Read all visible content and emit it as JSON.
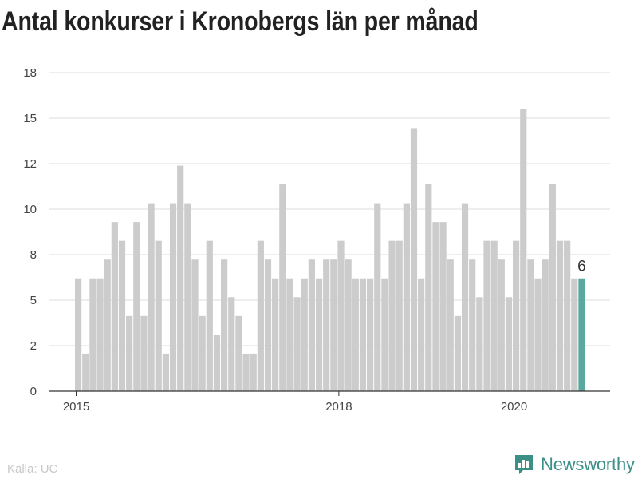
{
  "chart_data": {
    "type": "bar",
    "title": "Antal konkurser i Kronobergs län per månad",
    "xlabel": "",
    "ylabel": "",
    "ylim": [
      0,
      17.5
    ],
    "y_ticks": [
      0,
      2,
      5,
      8,
      10,
      12,
      15,
      18
    ],
    "x_ticks": [
      {
        "label": "2015",
        "index": 0
      },
      {
        "label": "2018",
        "index": 36
      },
      {
        "label": "2020",
        "index": 60
      }
    ],
    "values": [
      6,
      2,
      6,
      6,
      7,
      9,
      8,
      4,
      9,
      4,
      10,
      8,
      2,
      10,
      12,
      10,
      7,
      4,
      8,
      3,
      7,
      5,
      4,
      2,
      2,
      8,
      7,
      6,
      11,
      6,
      5,
      6,
      7,
      6,
      7,
      7,
      8,
      7,
      6,
      6,
      6,
      10,
      6,
      8,
      8,
      10,
      14,
      6,
      11,
      9,
      9,
      7,
      4,
      10,
      7,
      5,
      8,
      8,
      7,
      5,
      8,
      15,
      7,
      6,
      7,
      11,
      8,
      8,
      6,
      6
    ],
    "highlight": {
      "index": 69,
      "label": "6",
      "color": "#5aa89e"
    },
    "bar_color": "#cccccc",
    "grid": true,
    "legend": "none"
  },
  "footer": {
    "source": "Källa: UC",
    "brand": "Newsworthy",
    "brand_color": "#3b8f86"
  }
}
